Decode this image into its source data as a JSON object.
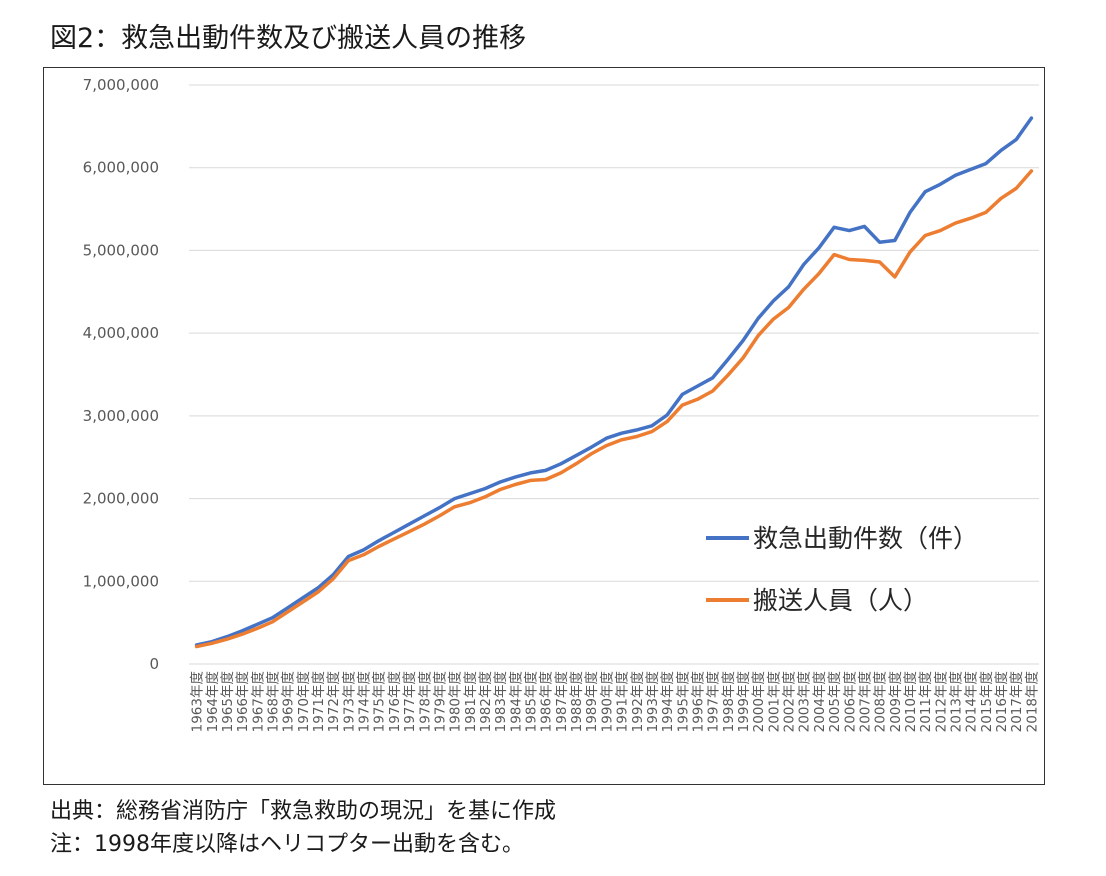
{
  "title": "図2：救急出動件数及び搬送人員の推移",
  "source_note": "出典：総務省消防庁「救急救助の現況」を基に作成",
  "remark_note": "注：1998年度以降はヘリコプター出動を含む。",
  "colors": {
    "dispatch": "#4472C4",
    "transported": "#ED7D31",
    "grid": "#D9D9D9",
    "axis_text": "#595959"
  },
  "chart_data": {
    "type": "line",
    "title": "",
    "xlabel": "",
    "ylabel": "",
    "ylim": [
      0,
      7000000
    ],
    "yticks": [
      0,
      1000000,
      2000000,
      3000000,
      4000000,
      5000000,
      6000000,
      7000000
    ],
    "ytick_labels": [
      "0",
      "1,000,000",
      "2,000,000",
      "3,000,000",
      "4,000,000",
      "5,000,000",
      "6,000,000",
      "7,000,000"
    ],
    "grid": "horizontal",
    "legend": "right",
    "categories": [
      "1963年度",
      "1964年度",
      "1965年度",
      "1966年度",
      "1967年度",
      "1968年度",
      "1969年度",
      "1970年度",
      "1971年度",
      "1972年度",
      "1973年度",
      "1974年度",
      "1975年度",
      "1976年度",
      "1977年度",
      "1978年度",
      "1979年度",
      "1980年度",
      "1981年度",
      "1982年度",
      "1983年度",
      "1984年度",
      "1985年度",
      "1986年度",
      "1987年度",
      "1988年度",
      "1989年度",
      "1990年度",
      "1991年度",
      "1992年度",
      "1993年度",
      "1994年度",
      "1995年度",
      "1996年度",
      "1997年度",
      "1998年度",
      "1999年度",
      "2000年度",
      "2001年度",
      "2002年度",
      "2003年度",
      "2004年度",
      "2005年度",
      "2006年度",
      "2007年度",
      "2008年度",
      "2009年度",
      "2010年度",
      "2011年度",
      "2012年度",
      "2013年度",
      "2014年度",
      "2015年度",
      "2016年度",
      "2017年度",
      "2018年度"
    ],
    "series": [
      {
        "name": "救急出動件数（件）",
        "color": "#4472C4",
        "values": [
          230000,
          270000,
          330000,
          400000,
          480000,
          560000,
          680000,
          800000,
          920000,
          1080000,
          1300000,
          1380000,
          1490000,
          1590000,
          1690000,
          1790000,
          1890000,
          2000000,
          2060000,
          2120000,
          2200000,
          2260000,
          2310000,
          2340000,
          2420000,
          2520000,
          2620000,
          2730000,
          2790000,
          2830000,
          2880000,
          3010000,
          3260000,
          3360000,
          3460000,
          3680000,
          3910000,
          4180000,
          4390000,
          4560000,
          4830000,
          5030000,
          5280000,
          5240000,
          5290000,
          5100000,
          5120000,
          5460000,
          5710000,
          5800000,
          5910000,
          5980000,
          6050000,
          6210000,
          6340000,
          6600000
        ]
      },
      {
        "name": "搬送人員（人）",
        "color": "#ED7D31",
        "values": [
          210000,
          250000,
          300000,
          360000,
          430000,
          510000,
          630000,
          750000,
          870000,
          1030000,
          1250000,
          1320000,
          1420000,
          1510000,
          1600000,
          1690000,
          1790000,
          1900000,
          1950000,
          2020000,
          2110000,
          2170000,
          2220000,
          2230000,
          2310000,
          2420000,
          2540000,
          2640000,
          2710000,
          2750000,
          2810000,
          2930000,
          3130000,
          3200000,
          3300000,
          3490000,
          3700000,
          3970000,
          4170000,
          4310000,
          4530000,
          4720000,
          4950000,
          4890000,
          4880000,
          4860000,
          4680000,
          4980000,
          5180000,
          5240000,
          5330000,
          5390000,
          5460000,
          5630000,
          5750000,
          5960000
        ]
      }
    ]
  }
}
